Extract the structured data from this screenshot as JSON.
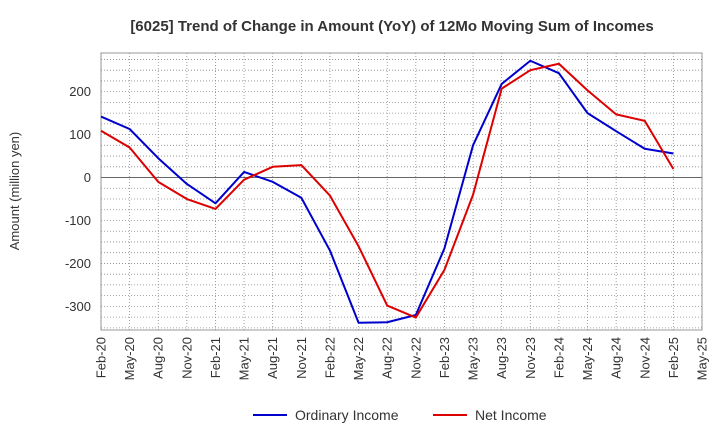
{
  "chart_data": {
    "type": "line",
    "title": "[6025]  Trend of Change in Amount (YoY) of 12Mo Moving Sum of Incomes",
    "xlabel": "",
    "ylabel": "Amount (million yen)",
    "ylim": [
      -355,
      290
    ],
    "yticks": [
      -300,
      -200,
      -100,
      0,
      100,
      200
    ],
    "grid": true,
    "legend_position": "bottom",
    "x": [
      "Feb-20",
      "May-20",
      "Aug-20",
      "Nov-20",
      "Feb-21",
      "May-21",
      "Aug-21",
      "Nov-21",
      "Feb-22",
      "May-22",
      "Aug-22",
      "Nov-22",
      "Feb-23",
      "May-23",
      "Aug-23",
      "Nov-23",
      "Feb-24",
      "May-24",
      "Aug-24",
      "Nov-24",
      "Feb-25",
      "May-25"
    ],
    "series": [
      {
        "name": "Ordinary Income",
        "color": "#0000cc",
        "values": [
          142,
          113,
          45,
          -15,
          -60,
          13,
          -10,
          -47,
          -170,
          -338,
          -337,
          -320,
          -165,
          75,
          218,
          272,
          243,
          150,
          108,
          67,
          56,
          null
        ]
      },
      {
        "name": "Net Income",
        "color": "#dd0000",
        "values": [
          109,
          70,
          -10,
          -50,
          -73,
          -5,
          25,
          29,
          -42,
          -160,
          -298,
          -326,
          -215,
          -40,
          207,
          250,
          265,
          203,
          147,
          132,
          20,
          null
        ]
      }
    ]
  }
}
